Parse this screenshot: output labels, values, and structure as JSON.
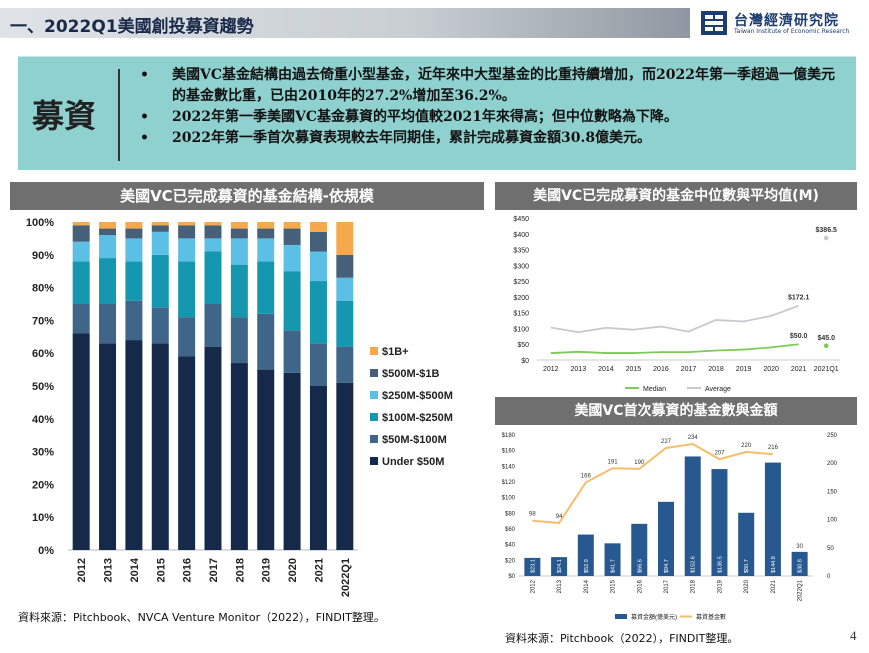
{
  "header": {
    "title": "一、2022Q1美國創投募資趨勢",
    "logo_name": "台灣經濟研究院",
    "logo_en": "Taiwan Institute of Economic Research",
    "logo_icon": "tier-logo-icon"
  },
  "banner": {
    "label": "募資",
    "bullets": [
      "美國VC基金結構由過去倚重小型基金，近年來中大型基金的比重持續增加，而2022年第一季超過一億美元的基金數比重，已由2010年的27.2%增加至36.2%。",
      "2022年第一季美國VC基金募資的平均值較2021年來得高；但中位數略為下降。",
      "2022年第一季首次募資表現較去年同期佳，累計完成募資金額30.8億美元。"
    ],
    "bullet_char": "•"
  },
  "colors": {
    "banner_bg": "#8fd1cf",
    "header_bar": "#6f6f6f",
    "under50": "#15294a",
    "50_100": "#3f6688",
    "100_250": "#1597b0",
    "250_500": "#5bbfe6",
    "500_1b": "#47607a",
    "1b_plus": "#f6a94a",
    "median": "#7dc95a",
    "average": "#c8c9cc",
    "amount_bar": "#27588f",
    "count_line": "#f7bd6a"
  },
  "chart_data": [
    {
      "id": "fund-structure",
      "type": "bar",
      "stacked": true,
      "title": "美國VC已完成募資的基金結構-依規模",
      "categories": [
        "2012",
        "2013",
        "2014",
        "2015",
        "2016",
        "2017",
        "2018",
        "2019",
        "2020",
        "2021",
        "2022Q1"
      ],
      "series": [
        {
          "name": "Under $50M",
          "color_key": "under50",
          "values": [
            66,
            63,
            64,
            63,
            59,
            62,
            57,
            55,
            54,
            50,
            51
          ]
        },
        {
          "name": "$50M-$100M",
          "color_key": "50_100",
          "values": [
            9,
            12,
            12,
            11,
            12,
            13,
            14,
            17,
            13,
            13,
            11
          ]
        },
        {
          "name": "$100M-$250M",
          "color_key": "100_250",
          "values": [
            13,
            14,
            12,
            16,
            17,
            16,
            16,
            16,
            18,
            19,
            14
          ]
        },
        {
          "name": "$250M-$500M",
          "color_key": "250_500",
          "values": [
            6,
            7,
            7,
            7,
            7,
            4,
            8,
            7,
            8,
            9,
            7
          ]
        },
        {
          "name": "$500M-$1B",
          "color_key": "500_1b",
          "values": [
            5,
            2,
            3,
            2,
            4,
            4,
            3,
            3,
            5,
            6,
            7
          ]
        },
        {
          "name": "$1B+",
          "color_key": "1b_plus",
          "values": [
            1,
            2,
            2,
            1,
            1,
            1,
            2,
            2,
            2,
            3,
            10
          ]
        }
      ],
      "yticks": [
        "0%",
        "10%",
        "20%",
        "30%",
        "40%",
        "50%",
        "60%",
        "70%",
        "80%",
        "90%",
        "100%"
      ],
      "ylim": [
        0,
        100
      ],
      "legend_position": "right"
    },
    {
      "id": "median-average",
      "type": "line",
      "title": "美國VC已完成募資的基金中位數與平均值(M)",
      "categories": [
        "2012",
        "2013",
        "2014",
        "2015",
        "2016",
        "2017",
        "2018",
        "2019",
        "2020",
        "2021",
        "2021Q1"
      ],
      "series": [
        {
          "name": "Median",
          "color_key": "median",
          "values": [
            22,
            26,
            22,
            22,
            25,
            25,
            30,
            33,
            40,
            50,
            null
          ],
          "q1": 45.0
        },
        {
          "name": "Average",
          "color_key": "average",
          "values": [
            103,
            88,
            102,
            96,
            106,
            90,
            127,
            122,
            140,
            172.1,
            null
          ],
          "q1": 386.5
        }
      ],
      "labels": {
        "avg_2021": "$172.1",
        "avg_q1": "$386.5",
        "med_2021": "$50.0",
        "med_q1": "$45.0"
      },
      "yticks": [
        "$0",
        "$50",
        "$100",
        "$150",
        "$200",
        "$250",
        "$300",
        "$350",
        "$400",
        "$450"
      ],
      "ylim": [
        0,
        450
      ],
      "legend_position": "bottom"
    },
    {
      "id": "first-time-funds",
      "type": "bar",
      "title": "美國VC首次募資的基金數與金額",
      "categories": [
        "2012",
        "2013",
        "2014",
        "2015",
        "2016",
        "2017",
        "2018",
        "2019",
        "2020",
        "2021",
        "2022Q1"
      ],
      "bars": {
        "name": "募資金額(億美元)",
        "color_key": "amount_bar",
        "values": [
          23.1,
          24.1,
          52.9,
          41.7,
          66.6,
          94.7,
          152.6,
          136.5,
          80.7,
          144.8,
          30.8
        ],
        "labels": [
          "$23.1",
          "$24.1",
          "$52.9",
          "$41.7",
          "$66.6",
          "$94.7",
          "$152.6",
          "$136.5",
          "$80.7",
          "$144.8",
          "$30.8"
        ]
      },
      "line": {
        "name": "募資基金數",
        "color_key": "count_line",
        "values": [
          98,
          94,
          166,
          191,
          190,
          227,
          234,
          207,
          220,
          216,
          null
        ],
        "last_label": "30"
      },
      "yticks_left": [
        "$0",
        "$20",
        "$40",
        "$60",
        "$80",
        "$100",
        "$120",
        "$140",
        "$160",
        "$180"
      ],
      "ylim_left": [
        0,
        180
      ],
      "yticks_right": [
        "0",
        "50",
        "100",
        "150",
        "200",
        "250"
      ],
      "ylim_right": [
        0,
        250
      ],
      "legend_position": "bottom"
    }
  ],
  "sources": {
    "left": "資料來源：Pitchbook、NVCA Venture Monitor（2022），FINDIT整理。",
    "right": "資料來源：Pitchbook（2022），FINDIT整理。"
  },
  "page_number": "4"
}
